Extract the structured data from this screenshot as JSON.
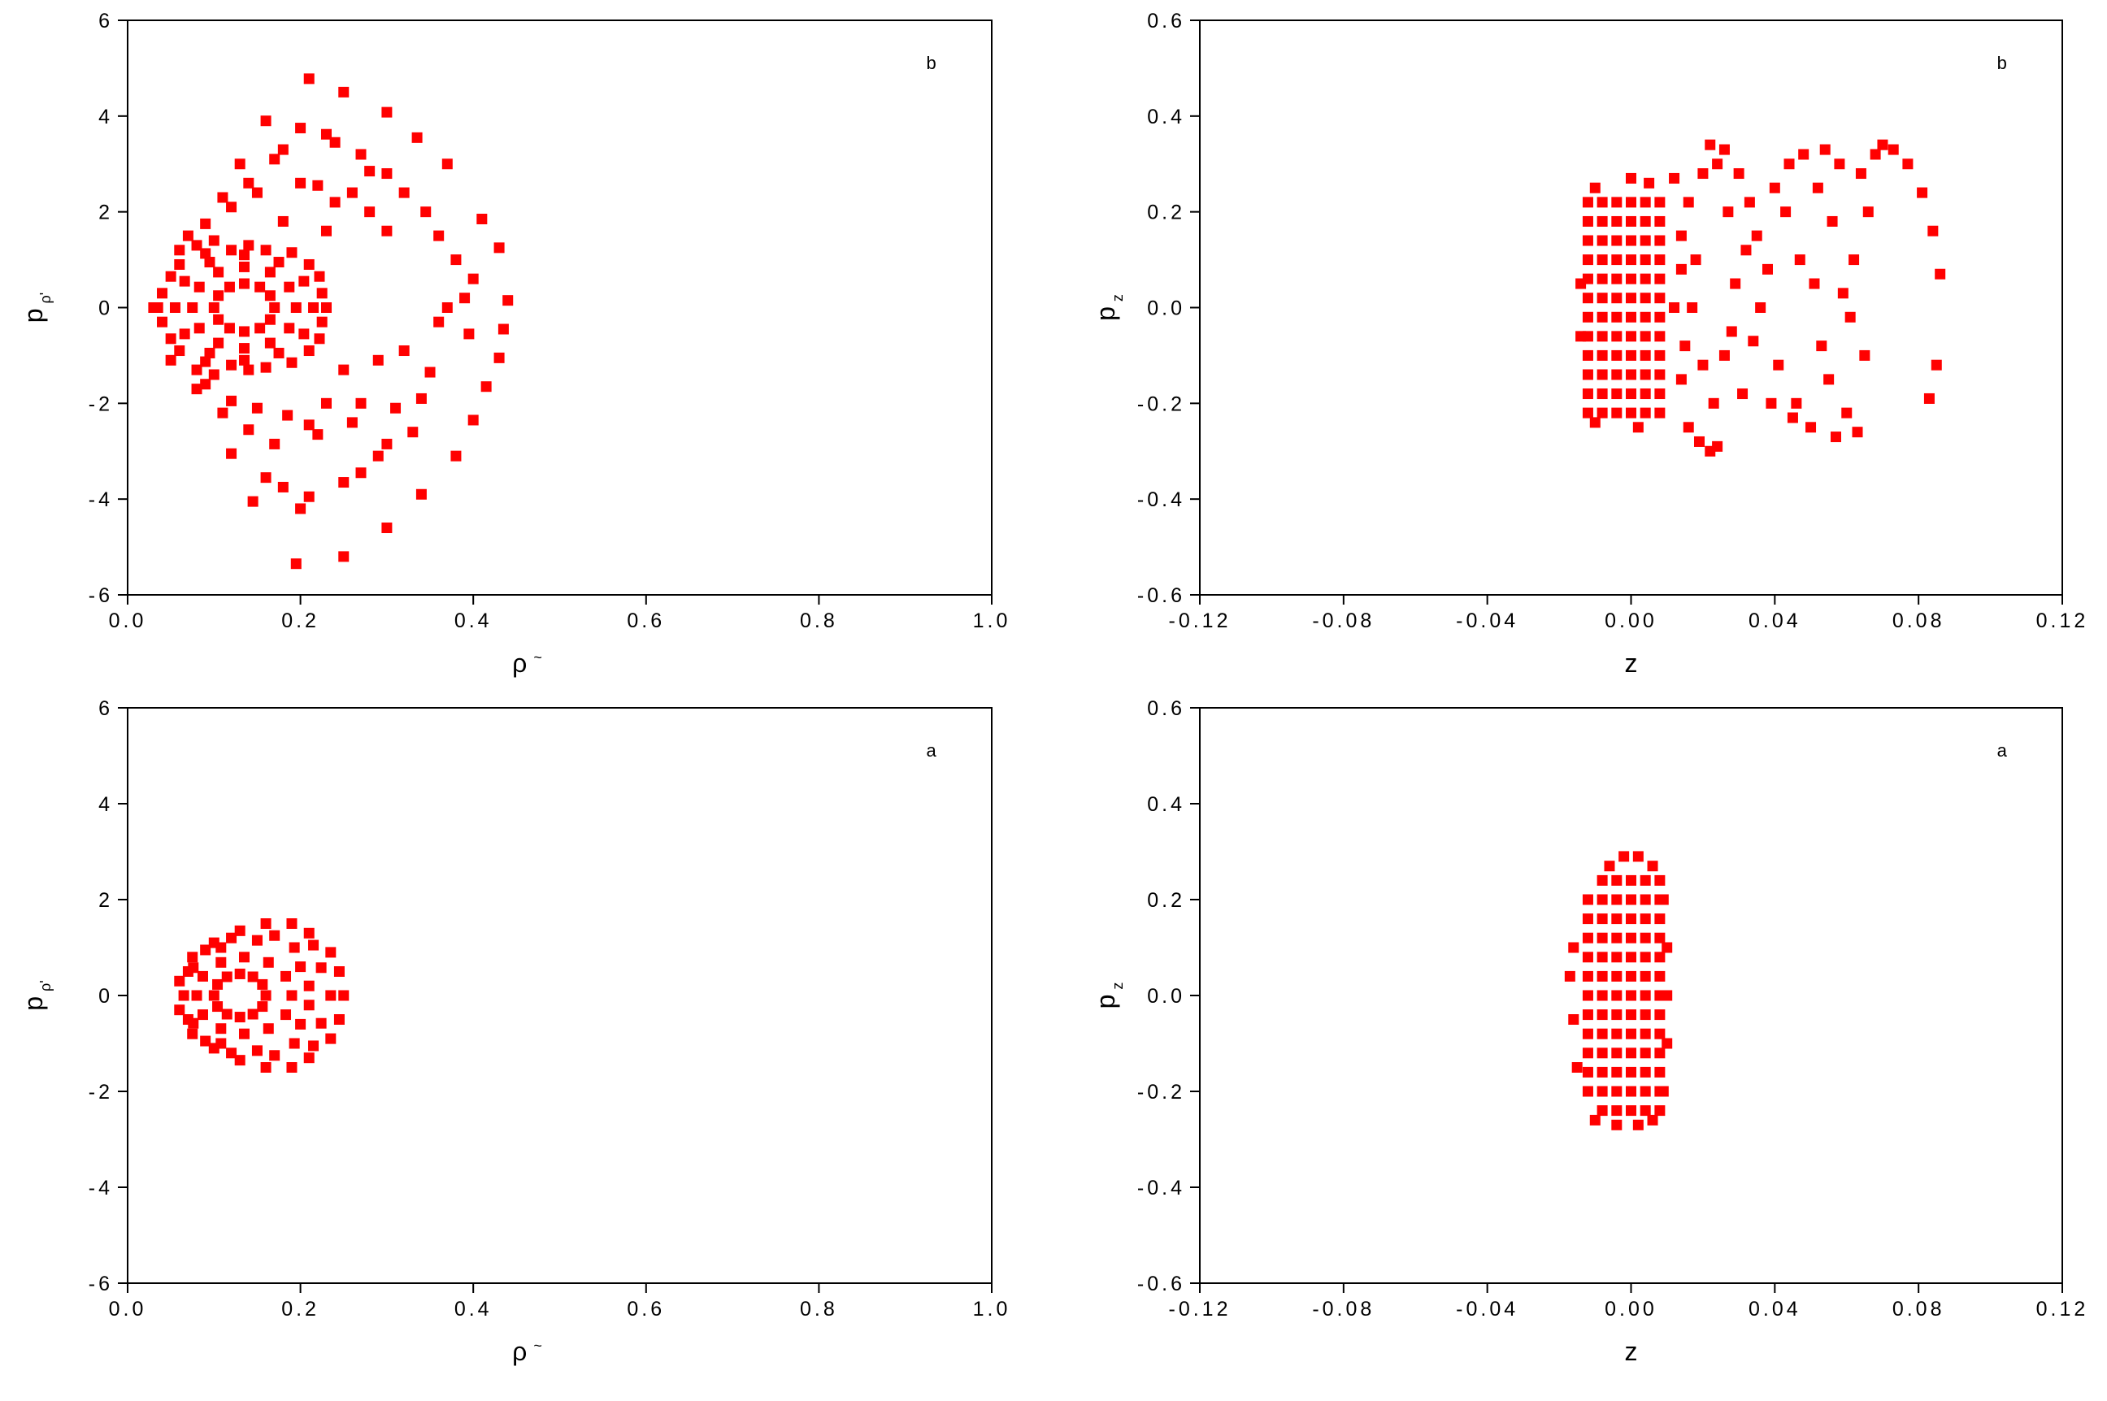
{
  "chart_data": [
    {
      "type": "scatter",
      "annotation": "b",
      "x_label": [
        "ρ",
        "~"
      ],
      "y_label": [
        "p",
        "ρ'"
      ],
      "xlim": [
        0,
        1
      ],
      "ylim": [
        -6,
        6
      ],
      "xticks": [
        {
          "value": 0,
          "label": "0.0"
        },
        0.2,
        0.4,
        0.6,
        0.8,
        {
          "value": 1,
          "label": "1.0"
        }
      ],
      "yticks": [
        -6,
        -4,
        -2,
        0,
        2,
        4,
        6
      ],
      "series": [
        {
          "color": "#ff0000",
          "x": [
            0.21,
            0.25,
            0.3,
            0.16,
            0.2,
            0.23,
            0.24,
            0.335,
            0.18,
            0.27,
            0.17,
            0.28,
            0.3,
            0.37,
            0.13,
            0.14,
            0.2,
            0.22,
            0.26,
            0.32,
            0.11,
            0.12,
            0.15,
            0.24,
            0.28,
            0.345,
            0.41,
            0.09,
            0.18,
            0.23,
            0.3,
            0.36,
            0.43,
            0.38,
            0.4,
            0.44,
            0.39,
            0.37,
            0.435,
            0.395,
            0.36,
            0.43,
            0.32,
            0.35,
            0.29,
            0.25,
            0.415,
            0.34,
            0.31,
            0.27,
            0.23,
            0.4,
            0.26,
            0.21,
            0.33,
            0.185,
            0.15,
            0.12,
            0.09,
            0.11,
            0.14,
            0.22,
            0.3,
            0.38,
            0.12,
            0.17,
            0.29,
            0.16,
            0.18,
            0.27,
            0.25,
            0.21,
            0.34,
            0.145,
            0.2,
            0.3,
            0.195,
            0.25,
            0.17,
            0.165,
            0.153,
            0.135,
            0.118,
            0.105,
            0.1,
            0.105,
            0.118,
            0.135,
            0.153,
            0.165,
            0.195,
            0.187,
            0.165,
            0.135,
            0.105,
            0.083,
            0.075,
            0.083,
            0.105,
            0.135,
            0.165,
            0.187,
            0.215,
            0.204,
            0.175,
            0.135,
            0.095,
            0.066,
            0.055,
            0.066,
            0.095,
            0.135,
            0.175,
            0.204,
            0.23,
            0.222,
            0.19,
            0.14,
            0.09,
            0.05,
            0.035,
            0.05,
            0.09,
            0.14,
            0.19,
            0.222,
            0.03,
            0.04,
            0.04,
            0.06,
            0.06,
            0.08,
            0.08,
            0.1,
            0.1,
            0.12,
            0.12,
            0.16,
            0.16,
            0.21,
            0.21,
            0.225,
            0.225,
            0.06,
            0.05,
            0.07,
            0.08
          ],
          "y": [
            4.78,
            4.5,
            4.08,
            3.9,
            3.75,
            3.62,
            3.45,
            3.55,
            3.3,
            3.2,
            3.1,
            2.85,
            2.8,
            3.0,
            3.0,
            2.6,
            2.6,
            2.55,
            2.4,
            2.4,
            2.3,
            2.1,
            2.4,
            2.2,
            2.0,
            2.0,
            1.85,
            1.75,
            1.8,
            1.6,
            1.6,
            1.5,
            1.25,
            1.0,
            0.6,
            0.15,
            0.2,
            0,
            -0.45,
            -0.55,
            -0.3,
            -1.05,
            -0.9,
            -1.35,
            -1.1,
            -1.3,
            -1.65,
            -1.9,
            -2.1,
            -2.0,
            -2.0,
            -2.35,
            -2.4,
            -2.45,
            -2.6,
            -2.25,
            -2.1,
            -1.95,
            -1.6,
            -2.2,
            -2.55,
            -2.65,
            -2.85,
            -3.1,
            -3.05,
            -2.85,
            -3.1,
            -3.55,
            -3.75,
            -3.45,
            -3.65,
            -3.95,
            -3.9,
            -4.05,
            -4.2,
            -4.6,
            -5.35,
            -5.2,
            0,
            0.25,
            0.43,
            0.5,
            0.43,
            0.25,
            0,
            -0.25,
            -0.43,
            -0.5,
            -0.43,
            -0.25,
            0,
            0.43,
            0.74,
            0.85,
            0.74,
            0.43,
            0,
            -0.43,
            -0.74,
            -0.85,
            -0.74,
            -0.43,
            0,
            0.55,
            0.95,
            1.1,
            0.95,
            0.55,
            0,
            -0.55,
            -0.95,
            -1.1,
            -0.95,
            -0.55,
            0,
            0.65,
            1.15,
            1.3,
            1.13,
            0.65,
            0,
            -0.65,
            -1.13,
            -1.3,
            -1.15,
            -0.65,
            0,
            0.3,
            -0.3,
            0.9,
            -0.9,
            1.3,
            -1.3,
            1.4,
            -1.4,
            1.2,
            -1.2,
            1.2,
            -1.25,
            0.9,
            -0.9,
            0.3,
            -0.3,
            1.2,
            -1.1,
            1.5,
            -1.7
          ]
        }
      ]
    },
    {
      "type": "scatter",
      "annotation": "b",
      "x_label": [
        "z"
      ],
      "y_label": [
        "p",
        "z"
      ],
      "xlim": [
        -0.12,
        0.12
      ],
      "ylim": [
        -0.6,
        0.6
      ],
      "xticks": [
        -0.12,
        -0.08,
        -0.04,
        {
          "value": 0,
          "label": "0.00"
        },
        0.04,
        0.08,
        0.12
      ],
      "yticks": [
        -0.6,
        -0.4,
        -0.2,
        {
          "value": 0,
          "label": "0.0"
        },
        0.2,
        0.4,
        0.6
      ],
      "series": [
        {
          "color": "#ff0000",
          "x": [
            -0.012,
            -0.012,
            -0.012,
            -0.012,
            -0.012,
            -0.012,
            -0.012,
            -0.012,
            -0.012,
            -0.012,
            -0.012,
            -0.012,
            -0.008,
            -0.008,
            -0.008,
            -0.008,
            -0.008,
            -0.008,
            -0.008,
            -0.008,
            -0.008,
            -0.008,
            -0.008,
            -0.008,
            -0.004,
            -0.004,
            -0.004,
            -0.004,
            -0.004,
            -0.004,
            -0.004,
            -0.004,
            -0.004,
            -0.004,
            -0.004,
            -0.004,
            0,
            0,
            0,
            0,
            0,
            0,
            0,
            0,
            0,
            0,
            0,
            0,
            0.004,
            0.004,
            0.004,
            0.004,
            0.004,
            0.004,
            0.004,
            0.004,
            0.004,
            0.004,
            0.004,
            0.004,
            0.008,
            0.008,
            0.008,
            0.008,
            0.008,
            0.008,
            0.008,
            0.008,
            0.008,
            0.008,
            0.008,
            0.008,
            -0.01,
            0,
            0.005,
            -0.01,
            0.002,
            0.012,
            0.014,
            0.014,
            -0.014,
            -0.014,
            0.012,
            0.016,
            0.02,
            0.024,
            0.022,
            0.026,
            0.019,
            0.022,
            0.024,
            0.016,
            0.018,
            0.017,
            0.02,
            0.023,
            0.027,
            0.028,
            0.03,
            0.032,
            0.029,
            0.031,
            0.035,
            0.036,
            0.034,
            0.038,
            0.04,
            0.041,
            0.043,
            0.044,
            0.046,
            0.047,
            0.048,
            0.05,
            0.051,
            0.052,
            0.053,
            0.054,
            0.055,
            0.056,
            0.057,
            0.058,
            0.059,
            0.06,
            0.061,
            0.062,
            0.063,
            0.064,
            0.065,
            0.066,
            0.045,
            0.039,
            0.033,
            0.026,
            0.014,
            0.015,
            0.07,
            0.073,
            0.077,
            0.081,
            0.084,
            0.086,
            0.085,
            0.083,
            0.068
          ],
          "y": [
            -0.22,
            -0.18,
            -0.14,
            -0.1,
            -0.06,
            -0.02,
            0.02,
            0.06,
            0.1,
            0.14,
            0.18,
            0.22,
            -0.22,
            -0.18,
            -0.14,
            -0.1,
            -0.06,
            -0.02,
            0.02,
            0.06,
            0.1,
            0.14,
            0.18,
            0.22,
            -0.22,
            -0.18,
            -0.14,
            -0.1,
            -0.06,
            -0.02,
            0.02,
            0.06,
            0.1,
            0.14,
            0.18,
            0.22,
            -0.22,
            -0.18,
            -0.14,
            -0.1,
            -0.06,
            -0.02,
            0.02,
            0.06,
            0.1,
            0.14,
            0.18,
            0.22,
            -0.22,
            -0.18,
            -0.14,
            -0.1,
            -0.06,
            -0.02,
            0.02,
            0.06,
            0.1,
            0.14,
            0.18,
            0.22,
            -0.22,
            -0.18,
            -0.14,
            -0.1,
            -0.06,
            -0.02,
            0.02,
            0.06,
            0.1,
            0.14,
            0.18,
            0.22,
            0.25,
            0.27,
            0.26,
            -0.24,
            -0.25,
            0,
            0.15,
            -0.15,
            0.05,
            -0.06,
            0.27,
            0.22,
            0.28,
            0.3,
            0.34,
            0.33,
            -0.28,
            -0.3,
            -0.29,
            -0.25,
            0.1,
            0.0,
            -0.12,
            -0.2,
            0.2,
            -0.05,
            0.28,
            0.12,
            0.05,
            -0.18,
            0.15,
            0.0,
            -0.07,
            0.08,
            0.25,
            -0.12,
            0.2,
            0.3,
            -0.2,
            0.1,
            0.32,
            -0.25,
            0.05,
            0.25,
            -0.08,
            0.33,
            -0.15,
            0.18,
            -0.27,
            0.3,
            0.03,
            -0.22,
            -0.02,
            0.1,
            -0.26,
            0.28,
            -0.1,
            0.2,
            -0.23,
            -0.2,
            0.22,
            -0.1,
            0.08,
            -0.08,
            0.34,
            0.33,
            0.3,
            0.24,
            0.16,
            0.07,
            -0.12,
            -0.19,
            0.32
          ]
        }
      ]
    },
    {
      "type": "scatter",
      "annotation": "a",
      "x_label": [
        "ρ",
        "~"
      ],
      "y_label": [
        "p",
        "ρ'"
      ],
      "xlim": [
        0,
        1
      ],
      "ylim": [
        -6,
        6
      ],
      "xticks": [
        {
          "value": 0,
          "label": "0.0"
        },
        0.2,
        0.4,
        0.6,
        0.8,
        {
          "value": 1,
          "label": "1.0"
        }
      ],
      "yticks": [
        -6,
        -4,
        -2,
        0,
        2,
        4,
        6
      ],
      "series": [
        {
          "color": "#ff0000",
          "x": [
            0.16,
            0.156,
            0.145,
            0.13,
            0.115,
            0.104,
            0.1,
            0.104,
            0.115,
            0.13,
            0.145,
            0.156,
            0.19,
            0.183,
            0.163,
            0.135,
            0.108,
            0.087,
            0.08,
            0.087,
            0.108,
            0.135,
            0.163,
            0.183,
            0.235,
            0.224,
            0.193,
            0.15,
            0.108,
            0.076,
            0.065,
            0.076,
            0.108,
            0.15,
            0.193,
            0.224,
            0.25,
            0.245,
            0.235,
            0.21,
            0.19,
            0.16,
            0.13,
            0.1,
            0.075,
            0.06,
            0.06,
            0.075,
            0.1,
            0.13,
            0.16,
            0.19,
            0.21,
            0.235,
            0.245,
            0.07,
            0.07,
            0.09,
            0.09,
            0.12,
            0.12,
            0.2,
            0.2,
            0.21,
            0.21,
            0.17,
            0.17,
            0.215,
            0.215
          ],
          "y": [
            0,
            0.23,
            0.39,
            0.45,
            0.39,
            0.23,
            0,
            -0.23,
            -0.39,
            -0.45,
            -0.39,
            -0.23,
            0,
            0.4,
            0.69,
            0.8,
            0.69,
            0.4,
            0,
            -0.4,
            -0.69,
            -0.8,
            -0.69,
            -0.4,
            0,
            0.58,
            1.0,
            1.15,
            1.0,
            0.58,
            0,
            -0.58,
            -1.0,
            -1.15,
            -1.0,
            -0.58,
            0,
            0.5,
            0.9,
            1.3,
            1.5,
            1.5,
            1.35,
            1.1,
            0.8,
            0.3,
            -0.3,
            -0.8,
            -1.1,
            -1.35,
            -1.5,
            -1.5,
            -1.3,
            -0.9,
            -0.5,
            0.5,
            -0.5,
            0.95,
            -0.95,
            1.2,
            -1.2,
            0.6,
            -0.6,
            0.2,
            -0.2,
            1.25,
            -1.25,
            1.05,
            -1.05
          ]
        }
      ]
    },
    {
      "type": "scatter",
      "annotation": "a",
      "x_label": [
        "z"
      ],
      "y_label": [
        "p",
        "z"
      ],
      "xlim": [
        -0.12,
        0.12
      ],
      "ylim": [
        -0.6,
        0.6
      ],
      "xticks": [
        -0.12,
        -0.08,
        -0.04,
        {
          "value": 0,
          "label": "0.00"
        },
        0.04,
        0.08,
        0.12
      ],
      "yticks": [
        -0.6,
        -0.4,
        -0.2,
        {
          "value": 0,
          "label": "0.0"
        },
        0.2,
        0.4,
        0.6
      ],
      "series": [
        {
          "color": "#ff0000",
          "x": [
            -0.012,
            -0.012,
            -0.012,
            -0.012,
            -0.012,
            -0.012,
            -0.012,
            -0.012,
            -0.012,
            -0.012,
            -0.012,
            -0.008,
            -0.008,
            -0.008,
            -0.008,
            -0.008,
            -0.008,
            -0.008,
            -0.008,
            -0.008,
            -0.008,
            -0.008,
            -0.008,
            -0.008,
            -0.004,
            -0.004,
            -0.004,
            -0.004,
            -0.004,
            -0.004,
            -0.004,
            -0.004,
            -0.004,
            -0.004,
            -0.004,
            -0.004,
            -0.004,
            0,
            0,
            0,
            0,
            0,
            0,
            0,
            0,
            0,
            0,
            0,
            0,
            0,
            0.004,
            0.004,
            0.004,
            0.004,
            0.004,
            0.004,
            0.004,
            0.004,
            0.004,
            0.004,
            0.004,
            0.004,
            0.004,
            0.008,
            0.008,
            0.008,
            0.008,
            0.008,
            0.008,
            0.008,
            0.008,
            0.008,
            0.008,
            0.008,
            0.008,
            0.008,
            -0.002,
            0.002,
            0.006,
            -0.006,
            -0.016,
            -0.017,
            -0.016,
            -0.015,
            0.01,
            0.01,
            0.01,
            0.009,
            0.009,
            -0.004,
            0.002,
            0.006,
            -0.01
          ],
          "y": [
            -0.2,
            -0.16,
            -0.12,
            -0.08,
            -0.04,
            0,
            0.04,
            0.08,
            0.12,
            0.16,
            0.2,
            -0.24,
            -0.2,
            -0.16,
            -0.12,
            -0.08,
            -0.04,
            0,
            0.04,
            0.08,
            0.12,
            0.16,
            0.2,
            0.24,
            -0.24,
            -0.2,
            -0.16,
            -0.12,
            -0.08,
            -0.04,
            0,
            0.04,
            0.08,
            0.12,
            0.16,
            0.2,
            0.24,
            -0.24,
            -0.2,
            -0.16,
            -0.12,
            -0.08,
            -0.04,
            0,
            0.04,
            0.08,
            0.12,
            0.16,
            0.2,
            0.24,
            -0.24,
            -0.2,
            -0.16,
            -0.12,
            -0.08,
            -0.04,
            0,
            0.04,
            0.08,
            0.12,
            0.16,
            0.2,
            0.24,
            -0.24,
            -0.2,
            -0.16,
            -0.12,
            -0.08,
            -0.04,
            0,
            0.04,
            0.08,
            0.12,
            0.16,
            0.2,
            0.24,
            0.29,
            0.29,
            0.27,
            0.27,
            0.1,
            0.04,
            -0.05,
            -0.15,
            0.1,
            -0.1,
            0.0,
            0.2,
            -0.2,
            -0.27,
            -0.27,
            -0.26,
            -0.26
          ]
        }
      ]
    }
  ]
}
